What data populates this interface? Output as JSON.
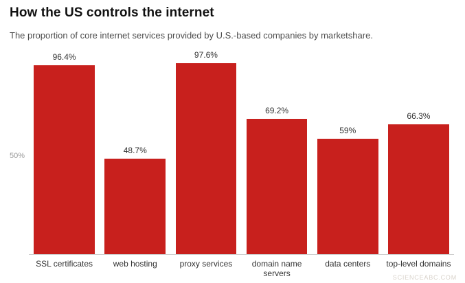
{
  "title": "How the US controls the internet",
  "subtitle": "The proportion of core internet services provided by U.S.-based companies by marketshare.",
  "watermark": "SCIENCEABC.COM",
  "axis": {
    "y_tick_label": "50%"
  },
  "colors": {
    "bar": "#c8201d",
    "title": "#111111",
    "subtitle": "#4d4d4d",
    "axis_line": "#cfcfcf"
  },
  "chart_data": {
    "type": "bar",
    "categories": [
      "SSL certificates",
      "web hosting",
      "proxy services",
      "domain name servers",
      "data centers",
      "top-level domains"
    ],
    "values": [
      96.4,
      48.7,
      97.6,
      69.2,
      59,
      66.3
    ],
    "value_labels": [
      "96.4%",
      "48.7%",
      "97.6%",
      "69.2%",
      "59%",
      "66.3%"
    ],
    "title": "How the US controls the internet",
    "xlabel": "",
    "ylabel": "",
    "ylim": [
      0,
      100
    ],
    "grid": false,
    "legend": false,
    "bar_color": "#c8201d"
  }
}
